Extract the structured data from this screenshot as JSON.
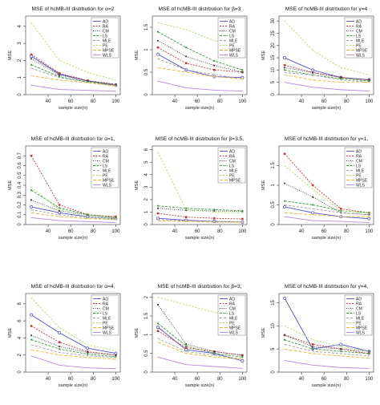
{
  "legend_order": [
    "AD",
    "RA",
    "CM",
    "LS",
    "MLE",
    "PE",
    "MPSE",
    "WLS"
  ],
  "series_styles": {
    "AD": {
      "color": "#4b4bcf",
      "dash": "",
      "marker": "circle"
    },
    "RA": {
      "color": "#c23b3b",
      "dash": "2,1.5",
      "marker": "square"
    },
    "CM": {
      "color": "#404040",
      "dash": "1,1.5",
      "marker": "dot"
    },
    "LS": {
      "color": "#3f9b3f",
      "dash": "3,1.5",
      "marker": "dot"
    },
    "MLE": {
      "color": "#9e9e9e",
      "dash": "3,2",
      "marker": "none"
    },
    "PE": {
      "color": "#a6df62",
      "dash": "2,2",
      "marker": "none"
    },
    "MPSE": {
      "color": "#e9b930",
      "dash": "4,2",
      "marker": "none"
    },
    "WLS": {
      "color": "#b788de",
      "dash": "",
      "marker": "none"
    }
  },
  "chart_data": [
    {
      "type": "line",
      "title": "MSE of hcMB-III distrbution for α=2",
      "xlabel": "sample size(n)",
      "ylabel": "MSE",
      "x": [
        25,
        50,
        75,
        100
      ],
      "xticks": [
        40,
        60,
        80,
        100
      ],
      "xlim": [
        20,
        104
      ],
      "ylim": [
        0,
        4.6
      ],
      "yticks": [
        0,
        1,
        2,
        3,
        4
      ],
      "legend_position": "top-right",
      "legend": [
        "AD",
        "RA",
        "CM",
        "LS",
        "MLE",
        "PE",
        "MPSE",
        "WLS"
      ],
      "series": [
        {
          "name": "AD",
          "values": [
            2.25,
            1.2,
            0.8,
            0.55
          ]
        },
        {
          "name": "RA",
          "values": [
            2.35,
            1.25,
            0.82,
            0.6
          ]
        },
        {
          "name": "CM",
          "values": [
            2.1,
            1.15,
            0.8,
            0.6
          ]
        },
        {
          "name": "LS",
          "values": [
            1.75,
            1.05,
            0.75,
            0.55
          ]
        },
        {
          "name": "MLE",
          "values": [
            1.55,
            1.0,
            0.72,
            0.52
          ]
        },
        {
          "name": "PE",
          "values": [
            4.2,
            2.0,
            1.3,
            0.85
          ]
        },
        {
          "name": "MPSE",
          "values": [
            1.1,
            0.85,
            0.7,
            0.5
          ]
        },
        {
          "name": "WLS",
          "values": [
            0.55,
            0.3,
            0.25,
            0.2
          ]
        }
      ]
    },
    {
      "type": "line",
      "title": "MSE of hcMB-III distrbution for β=3",
      "xlabel": "sample size(n)",
      "ylabel": "MSE",
      "x": [
        25,
        50,
        75,
        100
      ],
      "xticks": [
        40,
        60,
        80,
        100
      ],
      "xlim": [
        20,
        104
      ],
      "ylim": [
        0,
        1.75
      ],
      "yticks": [
        0.0,
        0.5,
        1.0,
        1.5
      ],
      "legend_position": "top-right",
      "legend": [
        "AD",
        "RA",
        "CM",
        "LS",
        "MLE",
        "PE",
        "MPSE",
        "WLS"
      ],
      "series": [
        {
          "name": "AD",
          "values": [
            0.9,
            0.55,
            0.4,
            0.38
          ]
        },
        {
          "name": "RA",
          "values": [
            1.05,
            0.7,
            0.55,
            0.5
          ]
        },
        {
          "name": "CM",
          "values": [
            1.2,
            0.85,
            0.65,
            0.5
          ]
        },
        {
          "name": "LS",
          "values": [
            1.4,
            1.05,
            0.75,
            0.55
          ]
        },
        {
          "name": "MLE",
          "values": [
            0.8,
            0.55,
            0.45,
            0.35
          ]
        },
        {
          "name": "PE",
          "values": [
            1.6,
            1.45,
            1.2,
            1.1
          ]
        },
        {
          "name": "MPSE",
          "values": [
            0.6,
            0.5,
            0.4,
            0.35
          ]
        },
        {
          "name": "WLS",
          "values": [
            0.3,
            0.15,
            0.1,
            0.08
          ]
        }
      ]
    },
    {
      "type": "line",
      "title": "MSE of hcMB-III distrbution for γ=4",
      "xlabel": "sample size(n)",
      "ylabel": "MSE",
      "x": [
        25,
        50,
        75,
        100
      ],
      "xticks": [
        40,
        60,
        80,
        100
      ],
      "xlim": [
        20,
        104
      ],
      "ylim": [
        0,
        32
      ],
      "yticks": [
        0,
        5,
        10,
        15,
        20,
        25,
        30
      ],
      "legend_position": "top-right",
      "legend": [
        "AD",
        "RA",
        "CM",
        "LS",
        "MLE",
        "PE",
        "MPSE",
        "WLS"
      ],
      "series": [
        {
          "name": "AD",
          "values": [
            15,
            10,
            7,
            6
          ]
        },
        {
          "name": "RA",
          "values": [
            12,
            9,
            7,
            6
          ]
        },
        {
          "name": "CM",
          "values": [
            11,
            9,
            7,
            6
          ]
        },
        {
          "name": "LS",
          "values": [
            10,
            8,
            6.5,
            5.5
          ]
        },
        {
          "name": "MLE",
          "values": [
            9,
            8,
            6,
            5
          ]
        },
        {
          "name": "PE",
          "values": [
            30,
            18,
            11,
            8
          ]
        },
        {
          "name": "MPSE",
          "values": [
            8,
            6,
            5,
            5
          ]
        },
        {
          "name": "WLS",
          "values": [
            5,
            3,
            2,
            1.5
          ]
        }
      ]
    },
    {
      "type": "line",
      "title": "MSE of hcMB-III distrbution for α=1,",
      "xlabel": "sample size(n)",
      "ylabel": "MSE",
      "x": [
        25,
        50,
        75,
        100
      ],
      "xticks": [
        40,
        60,
        80,
        100
      ],
      "xlim": [
        20,
        104
      ],
      "ylim": [
        0,
        0.8
      ],
      "yticks": [
        0.0,
        0.1,
        0.2,
        0.3,
        0.4,
        0.5,
        0.6,
        0.7
      ],
      "legend_position": "top-right",
      "legend": [
        "AD",
        "RA",
        "CM",
        "LS",
        "MLE",
        "PE",
        "MPSE",
        "WLS"
      ],
      "series": [
        {
          "name": "AD",
          "values": [
            0.18,
            0.12,
            0.08,
            0.06
          ]
        },
        {
          "name": "RA",
          "values": [
            0.7,
            0.2,
            0.1,
            0.08
          ]
        },
        {
          "name": "CM",
          "values": [
            0.25,
            0.14,
            0.1,
            0.07
          ]
        },
        {
          "name": "LS",
          "values": [
            0.35,
            0.17,
            0.1,
            0.07
          ]
        },
        {
          "name": "MLE",
          "values": [
            0.15,
            0.1,
            0.07,
            0.05
          ]
        },
        {
          "name": "PE",
          "values": [
            0.38,
            0.15,
            0.08,
            0.06
          ]
        },
        {
          "name": "MPSE",
          "values": [
            0.12,
            0.08,
            0.06,
            0.05
          ]
        },
        {
          "name": "WLS",
          "values": [
            0.07,
            0.04,
            0.03,
            0.02
          ]
        }
      ]
    },
    {
      "type": "line",
      "title": "MSE of hcMB-III distrbution for β=3.5,",
      "xlabel": "sample size(n)",
      "ylabel": "MSE",
      "x": [
        25,
        50,
        75,
        100
      ],
      "xticks": [
        40,
        60,
        80,
        100
      ],
      "xlim": [
        20,
        104
      ],
      "ylim": [
        0,
        6.3
      ],
      "yticks": [
        0,
        1,
        2,
        3,
        4,
        5,
        6
      ],
      "legend_position": "top-right",
      "legend": [
        "AD",
        "RA",
        "CM",
        "LS",
        "MLE",
        "PE",
        "MPSE"
      ],
      "series": [
        {
          "name": "AD",
          "values": [
            0.5,
            0.35,
            0.25,
            0.2
          ]
        },
        {
          "name": "RA",
          "values": [
            0.9,
            0.6,
            0.5,
            0.45
          ]
        },
        {
          "name": "CM",
          "values": [
            1.3,
            1.15,
            1.1,
            1.05
          ]
        },
        {
          "name": "LS",
          "values": [
            1.5,
            1.3,
            1.2,
            1.1
          ]
        },
        {
          "name": "MLE",
          "values": [
            0.4,
            0.3,
            0.25,
            0.2
          ]
        },
        {
          "name": "PE",
          "values": [
            5.8,
            1.2,
            1.0,
            0.9
          ]
        },
        {
          "name": "MPSE",
          "values": [
            0.3,
            0.25,
            0.2,
            0.18
          ]
        }
      ]
    },
    {
      "type": "line",
      "title": "MSE of hcMB-III distrbution for γ=1,",
      "xlabel": "sample size(n)",
      "ylabel": "MSE",
      "x": [
        25,
        50,
        75,
        100
      ],
      "xticks": [
        40,
        60,
        80,
        100
      ],
      "xlim": [
        20,
        104
      ],
      "ylim": [
        0,
        2.0
      ],
      "yticks": [
        0.0,
        0.5,
        1.0,
        1.5
      ],
      "legend_position": "top-right",
      "legend": [
        "AD",
        "RA",
        "CM",
        "LS",
        "MLE",
        "PE",
        "MPSE",
        "WLS"
      ],
      "series": [
        {
          "name": "AD",
          "values": [
            0.45,
            0.3,
            0.2,
            0.15
          ]
        },
        {
          "name": "RA",
          "values": [
            1.8,
            1.0,
            0.4,
            0.3
          ]
        },
        {
          "name": "CM",
          "values": [
            1.05,
            0.7,
            0.3,
            0.25
          ]
        },
        {
          "name": "LS",
          "values": [
            0.6,
            0.5,
            0.35,
            0.3
          ]
        },
        {
          "name": "MLE",
          "values": [
            0.5,
            0.4,
            0.3,
            0.25
          ]
        },
        {
          "name": "PE",
          "values": [
            1.5,
            0.9,
            0.35,
            0.3
          ]
        },
        {
          "name": "MPSE",
          "values": [
            0.3,
            0.25,
            0.2,
            0.2
          ]
        },
        {
          "name": "WLS",
          "values": [
            0.2,
            0.1,
            0.08,
            0.05
          ]
        }
      ]
    },
    {
      "type": "line",
      "title": "MSE of hcMB-III distrbution for α=4,",
      "xlabel": "sample size(n)",
      "ylabel": "MSE",
      "x": [
        25,
        50,
        75,
        100
      ],
      "xticks": [
        40,
        60,
        80,
        100
      ],
      "xlim": [
        20,
        104
      ],
      "ylim": [
        0,
        9.2
      ],
      "yticks": [
        0,
        2,
        4,
        6,
        8
      ],
      "legend_position": "top-right",
      "legend": [
        "AD",
        "RA",
        "CM",
        "LS",
        "MLE",
        "PE",
        "MPSE",
        "WLS"
      ],
      "series": [
        {
          "name": "AD",
          "values": [
            6.7,
            4.6,
            2.8,
            2.2
          ]
        },
        {
          "name": "RA",
          "values": [
            5.4,
            3.5,
            2.4,
            2.0
          ]
        },
        {
          "name": "CM",
          "values": [
            4.3,
            3.0,
            2.3,
            2.0
          ]
        },
        {
          "name": "LS",
          "values": [
            3.8,
            2.7,
            2.1,
            1.8
          ]
        },
        {
          "name": "MLE",
          "values": [
            3.2,
            2.3,
            1.9,
            1.7
          ]
        },
        {
          "name": "PE",
          "values": [
            8.7,
            5.2,
            3.2,
            2.5
          ]
        },
        {
          "name": "MPSE",
          "values": [
            2.6,
            2.0,
            1.7,
            1.5
          ]
        },
        {
          "name": "WLS",
          "values": [
            1.9,
            0.8,
            0.5,
            0.4
          ]
        }
      ]
    },
    {
      "type": "line",
      "title": "MSE of hcMB-III distrbution for β=3,",
      "xlabel": "sample size(n)",
      "ylabel": "MSE",
      "x": [
        25,
        50,
        75,
        100
      ],
      "xticks": [
        40,
        60,
        80,
        100
      ],
      "xlim": [
        20,
        104
      ],
      "ylim": [
        0,
        2.1
      ],
      "yticks": [
        0.0,
        0.5,
        1.0,
        1.5,
        2.0
      ],
      "legend_position": "top-right",
      "legend": [
        "AD",
        "RA",
        "CM",
        "LS",
        "MLE",
        "PE",
        "MPSE",
        "WLS"
      ],
      "series": [
        {
          "name": "AD",
          "values": [
            1.2,
            0.6,
            0.5,
            0.3
          ]
        },
        {
          "name": "RA",
          "values": [
            1.1,
            0.65,
            0.55,
            0.45
          ]
        },
        {
          "name": "CM",
          "values": [
            1.8,
            0.75,
            0.55,
            0.45
          ]
        },
        {
          "name": "LS",
          "values": [
            1.3,
            0.7,
            0.5,
            0.4
          ]
        },
        {
          "name": "MLE",
          "values": [
            0.9,
            0.55,
            0.45,
            0.35
          ]
        },
        {
          "name": "PE",
          "values": [
            2.0,
            1.8,
            1.6,
            1.5
          ]
        },
        {
          "name": "MPSE",
          "values": [
            0.8,
            0.5,
            0.4,
            0.35
          ]
        },
        {
          "name": "WLS",
          "values": [
            0.4,
            0.2,
            0.15,
            0.1
          ]
        }
      ]
    },
    {
      "type": "line",
      "title": "MSE of hcMB-III distrbution for γ=4,",
      "xlabel": "sample size(n)",
      "ylabel": "MSE",
      "x": [
        25,
        50,
        75,
        100
      ],
      "xticks": [
        40,
        60,
        80,
        100
      ],
      "xlim": [
        20,
        104
      ],
      "ylim": [
        0,
        17
      ],
      "yticks": [
        0,
        5,
        10,
        15
      ],
      "legend_position": "top-right",
      "legend": [
        "AD",
        "RA",
        "CM",
        "LS",
        "MLE",
        "PE",
        "MPSE",
        "WLS"
      ],
      "series": [
        {
          "name": "AD",
          "values": [
            16,
            5,
            6,
            4.5
          ]
        },
        {
          "name": "RA",
          "values": [
            8,
            6,
            5,
            4
          ]
        },
        {
          "name": "CM",
          "values": [
            8,
            5.5,
            5,
            4.5
          ]
        },
        {
          "name": "LS",
          "values": [
            7,
            5,
            4.5,
            4
          ]
        },
        {
          "name": "MLE",
          "values": [
            6,
            4.5,
            4,
            3.5
          ]
        },
        {
          "name": "PE",
          "values": [
            10,
            7,
            5.5,
            4.5
          ]
        },
        {
          "name": "MPSE",
          "values": [
            5,
            4,
            3.5,
            3
          ]
        },
        {
          "name": "WLS",
          "values": [
            2.5,
            1.5,
            1,
            0.8
          ]
        }
      ]
    }
  ]
}
